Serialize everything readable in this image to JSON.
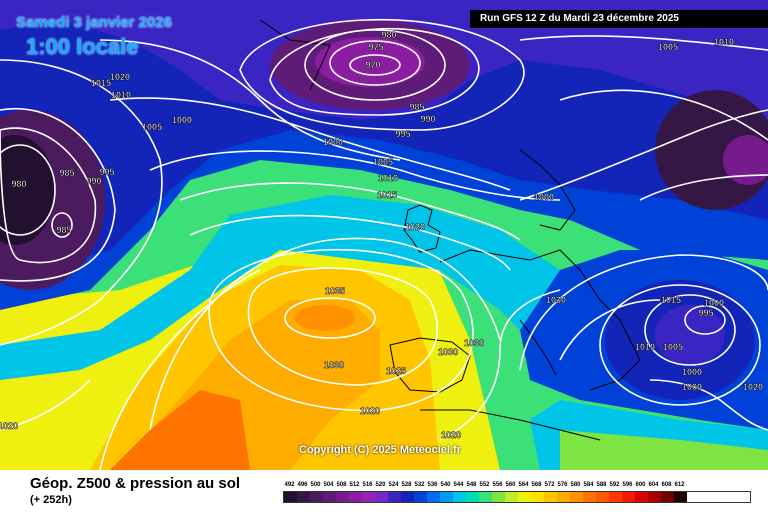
{
  "header": {
    "date_line": "Samedi 3 janvier 2026",
    "hour_line": "1:00 locale",
    "run_info": "Run GFS 12 Z du Mardi 23 décembre 2025"
  },
  "copyright": "Copyright (C) 2025 Meteociel.fr",
  "footer": {
    "title": "Géop. Z500 & pression au sol",
    "subtitle": "(+ 252h)"
  },
  "legend": {
    "values": [
      "492",
      "496",
      "500",
      "504",
      "508",
      "512",
      "516",
      "520",
      "524",
      "528",
      "532",
      "536",
      "540",
      "544",
      "548",
      "552",
      "556",
      "560",
      "564",
      "568",
      "572",
      "576",
      "580",
      "584",
      "588",
      "592",
      "596",
      "600",
      "604",
      "608",
      "612"
    ],
    "colors": [
      "#230f30",
      "#351746",
      "#4c1a5f",
      "#5f1b78",
      "#761b8c",
      "#8a1da0",
      "#9b22b8",
      "#7528c6",
      "#3a24c2",
      "#1225b8",
      "#0041d8",
      "#006cf2",
      "#0099f6",
      "#00c4e8",
      "#00dcb0",
      "#3ce078",
      "#7ee442",
      "#bdec2a",
      "#f0f010",
      "#ffe000",
      "#ffc600",
      "#ffac00",
      "#ff9000",
      "#ff7400",
      "#ff5800",
      "#ff3800",
      "#f81800",
      "#d80000",
      "#a80000",
      "#700000",
      "#200000"
    ]
  },
  "isobar_labels": [
    {
      "text": "980"
    },
    {
      "text": "975"
    },
    {
      "text": "970"
    },
    {
      "text": "985"
    },
    {
      "text": "990"
    },
    {
      "text": "995"
    },
    {
      "text": "1000"
    },
    {
      "text": "1005"
    },
    {
      "text": "1010"
    },
    {
      "text": "1015"
    },
    {
      "text": "1020"
    },
    {
      "text": "1005"
    },
    {
      "text": "1010"
    },
    {
      "text": "1020"
    },
    {
      "text": "1015"
    },
    {
      "text": "1010"
    },
    {
      "text": "1005"
    },
    {
      "text": "1000"
    },
    {
      "text": "980"
    },
    {
      "text": "985"
    },
    {
      "text": "990"
    },
    {
      "text": "995"
    },
    {
      "text": "985"
    },
    {
      "text": "1000"
    },
    {
      "text": "1035"
    },
    {
      "text": "1030"
    },
    {
      "text": "1030"
    },
    {
      "text": "1030"
    },
    {
      "text": "1025"
    },
    {
      "text": "1020"
    },
    {
      "text": "1020"
    },
    {
      "text": "1030"
    },
    {
      "text": "1015"
    },
    {
      "text": "1000"
    },
    {
      "text": "995"
    },
    {
      "text": "1010"
    },
    {
      "text": "1005"
    },
    {
      "text": "1000"
    },
    {
      "text": "1000"
    },
    {
      "text": "1020"
    },
    {
      "text": "1020"
    }
  ]
}
